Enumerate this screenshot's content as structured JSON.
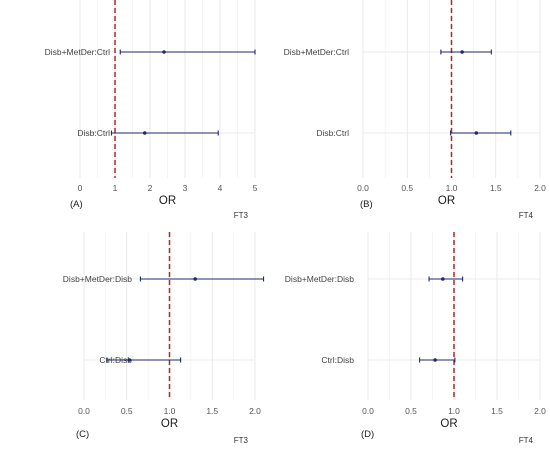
{
  "colors": {
    "interval": "#1f2a6b",
    "reference_line": "#a52a2a",
    "grid_major": "#e4e4e4",
    "grid_minor": "#f2f2f2"
  },
  "chart_data": [
    {
      "type": "forest",
      "panel_label": "(A)",
      "tag": "FT3",
      "xlabel": "OR",
      "xlim": [
        0,
        5
      ],
      "xticks": [
        "0",
        "1",
        "2",
        "3",
        "4",
        "5"
      ],
      "reference_value": 1,
      "categories": [
        "Disb+MetDer:Ctrl",
        "Disb:Ctrl"
      ],
      "estimates": [
        2.4,
        1.85
      ],
      "lower": [
        1.15,
        0.9
      ],
      "upper": [
        5.0,
        3.95
      ]
    },
    {
      "type": "forest",
      "panel_label": "(B)",
      "tag": "FT4",
      "xlabel": "OR",
      "xlim": [
        0,
        2
      ],
      "xticks": [
        "0.0",
        "0.5",
        "1.0",
        "1.5",
        "2.0"
      ],
      "reference_value": 1,
      "categories": [
        "Disb+MetDer:Ctrl",
        "Disb:Ctrl"
      ],
      "estimates": [
        1.12,
        1.28
      ],
      "lower": [
        0.88,
        0.99
      ],
      "upper": [
        1.45,
        1.67
      ]
    },
    {
      "type": "forest",
      "panel_label": "(C)",
      "tag": "FT3",
      "xlabel": "OR",
      "xlim": [
        0,
        2
      ],
      "xticks": [
        "0.0",
        "0.5",
        "1.0",
        "1.5",
        "2.0"
      ],
      "reference_value": 1,
      "categories": [
        "Disb+MetDer:Disb",
        "Ctrl:Disb"
      ],
      "estimates": [
        1.3,
        0.53
      ],
      "lower": [
        0.66,
        0.27
      ],
      "upper": [
        2.1,
        1.13
      ]
    },
    {
      "type": "forest",
      "panel_label": "(D)",
      "tag": "FT4",
      "xlabel": "OR",
      "xlim": [
        0,
        2
      ],
      "xticks": [
        "0.0",
        "0.5",
        "1.0",
        "1.5",
        "2.0"
      ],
      "reference_value": 1,
      "categories": [
        "Disb+MetDer:Disb",
        "Ctrl:Disb"
      ],
      "estimates": [
        0.87,
        0.78
      ],
      "lower": [
        0.71,
        0.6
      ],
      "upper": [
        1.1,
        1.01
      ]
    }
  ]
}
